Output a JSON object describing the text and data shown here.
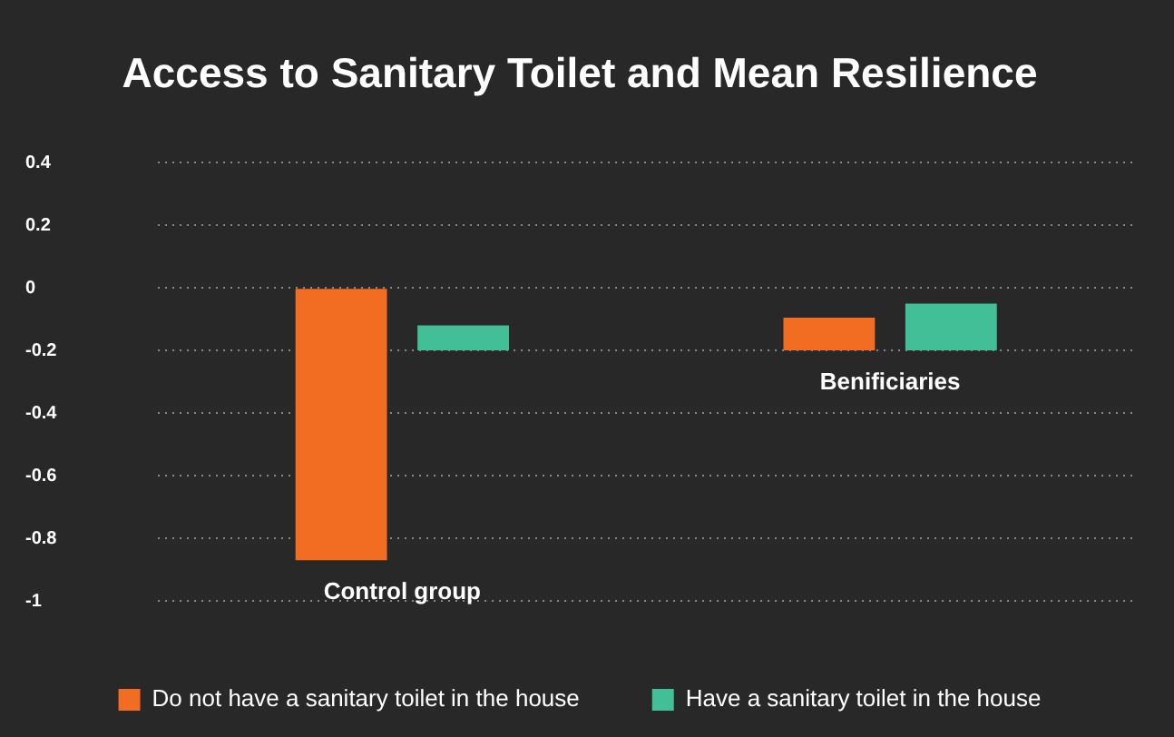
{
  "chart_data": {
    "type": "bar",
    "title": "Access to Sanitary Toilet and Mean Resilience",
    "categories": [
      "Control group",
      "Benificiaries"
    ],
    "series": [
      {
        "name": "Do not have a sanitary toilet in the house",
        "color": "#f26c22",
        "values": [
          -0.87,
          0.105
        ],
        "base": [
          0,
          -0.2
        ]
      },
      {
        "name": "Have a sanitary toilet in the house",
        "color": "#42bf96",
        "values": [
          0.08,
          0.15
        ],
        "base": [
          -0.2,
          -0.2
        ]
      }
    ],
    "ylim": [
      -1,
      0.4
    ],
    "yticks": [
      -1,
      -0.8,
      -0.6,
      -0.4,
      -0.2,
      0,
      0.2,
      0.4
    ],
    "grid": "y",
    "legend": "bottom"
  }
}
